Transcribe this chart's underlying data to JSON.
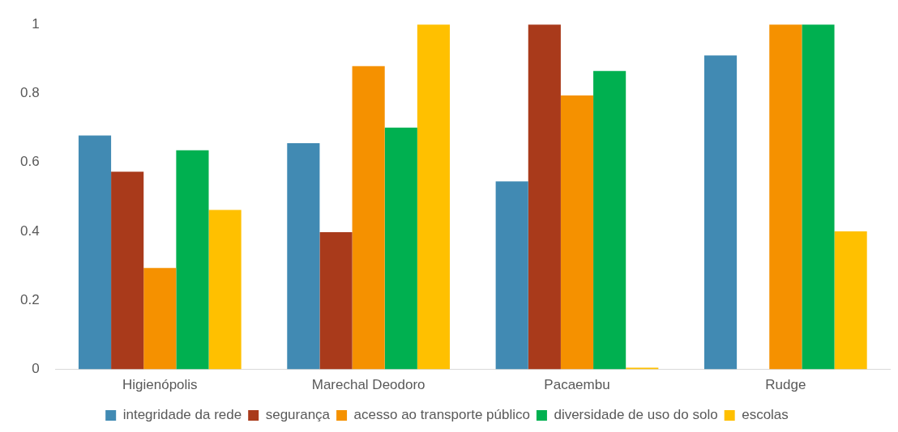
{
  "chart_data": {
    "type": "bar",
    "categories": [
      "Higienópolis",
      "Marechal Deodoro",
      "Pacaembu",
      "Rudge"
    ],
    "series": [
      {
        "name": "integridade da rede",
        "color": "#418ab3",
        "values": [
          0.678,
          0.656,
          0.545,
          0.91
        ]
      },
      {
        "name": "segurança",
        "color": "#a93a1b",
        "values": [
          0.573,
          0.398,
          1,
          0
        ]
      },
      {
        "name": "acesso ao transporte público",
        "color": "#f59100",
        "values": [
          0.294,
          0.879,
          0.794,
          1
        ]
      },
      {
        "name": "diversidade de uso do solo",
        "color": "#00b050",
        "values": [
          0.635,
          0.701,
          0.865,
          1
        ]
      },
      {
        "name": "escolas",
        "color": "#ffc000",
        "values": [
          0.462,
          1,
          0.005,
          0.4
        ]
      }
    ],
    "ylim": [
      0,
      1
    ],
    "yticks": [
      0,
      0.2,
      0.4,
      0.6,
      0.8,
      1
    ],
    "grid": false,
    "legend": "bottom"
  }
}
